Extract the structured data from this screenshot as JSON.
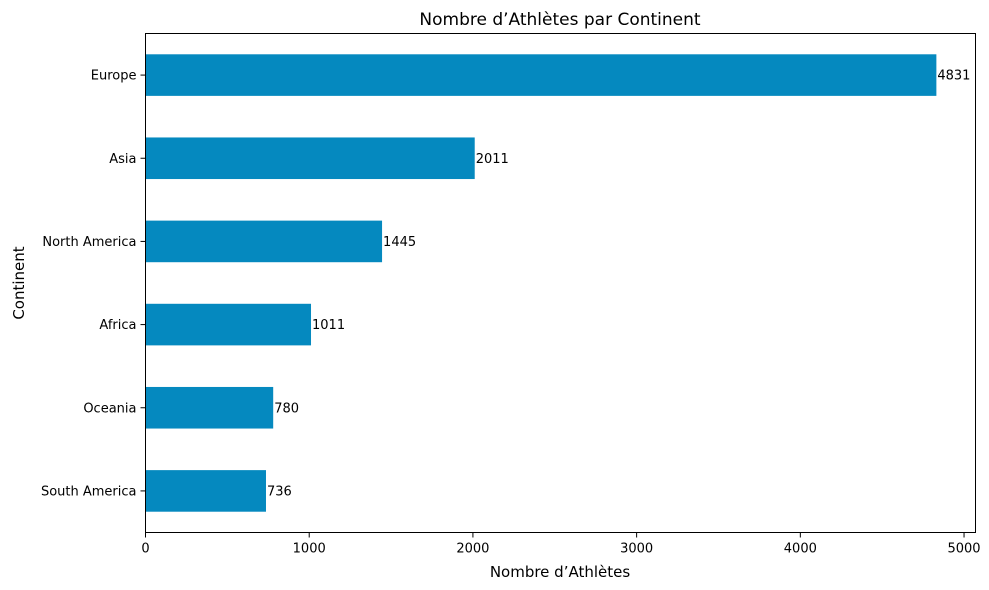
{
  "chart_data": {
    "type": "bar",
    "orientation": "horizontal",
    "title": "Nombre d’Athlètes par Continent",
    "xlabel": "Nombre d’Athlètes",
    "ylabel": "Continent",
    "categories": [
      "Europe",
      "Asia",
      "North America",
      "Africa",
      "Oceania",
      "South America"
    ],
    "values": [
      4831,
      2011,
      1445,
      1011,
      780,
      736
    ],
    "data_labels": [
      "4831",
      "2011",
      "1445",
      "1011",
      "780",
      "736"
    ],
    "xlim": [
      0,
      5070
    ],
    "xticks": [
      0,
      1000,
      2000,
      3000,
      4000,
      5000
    ],
    "xtick_labels": [
      "0",
      "1000",
      "2000",
      "3000",
      "4000",
      "5000"
    ],
    "grid": false,
    "legend": "none",
    "bar_color": "#0589bf"
  }
}
